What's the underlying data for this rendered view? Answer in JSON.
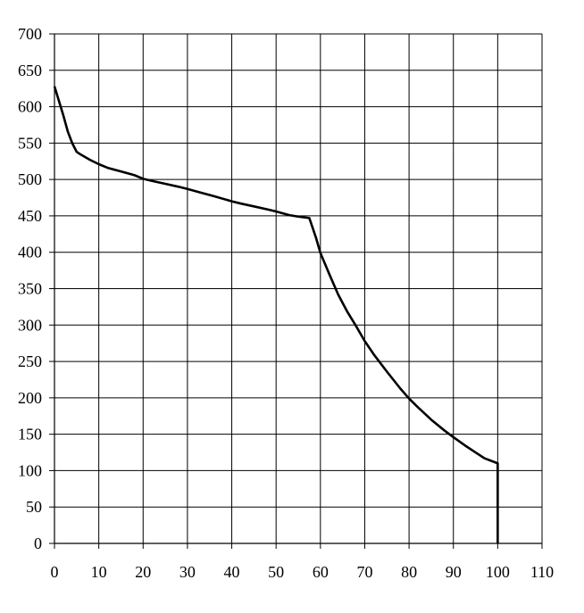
{
  "chart_data": {
    "type": "line",
    "title": "",
    "xlabel": "",
    "ylabel": "",
    "xlim": [
      0,
      110
    ],
    "ylim": [
      0,
      700
    ],
    "x_ticks": [
      0,
      10,
      20,
      30,
      40,
      50,
      60,
      70,
      80,
      90,
      100,
      110
    ],
    "y_ticks": [
      0,
      50,
      100,
      150,
      200,
      250,
      300,
      350,
      400,
      450,
      500,
      550,
      600,
      650,
      700
    ],
    "x_tick_labels": [
      "0",
      "10",
      "20",
      "30",
      "40",
      "50",
      "60",
      "70",
      "80",
      "90",
      "100",
      "110"
    ],
    "y_tick_labels": [
      "0",
      "50",
      "100",
      "150",
      "200",
      "250",
      "300",
      "350",
      "400",
      "450",
      "500",
      "550",
      "600",
      "650",
      "700"
    ],
    "grid": true,
    "line_color": "#000000",
    "series": [
      {
        "points": [
          [
            0,
            628
          ],
          [
            1,
            608
          ],
          [
            2,
            588
          ],
          [
            3,
            566
          ],
          [
            4,
            550
          ],
          [
            5,
            538
          ],
          [
            6,
            534
          ],
          [
            8,
            527
          ],
          [
            10,
            521
          ],
          [
            12,
            516
          ],
          [
            15,
            511
          ],
          [
            18,
            506
          ],
          [
            20,
            501
          ],
          [
            22,
            498
          ],
          [
            25,
            494
          ],
          [
            28,
            490
          ],
          [
            30,
            487
          ],
          [
            33,
            482
          ],
          [
            36,
            477
          ],
          [
            40,
            470
          ],
          [
            42,
            467
          ],
          [
            45,
            463
          ],
          [
            48,
            459
          ],
          [
            50,
            456
          ],
          [
            53,
            451
          ],
          [
            55,
            449
          ],
          [
            57.5,
            447
          ],
          [
            59,
            420
          ],
          [
            60,
            399
          ],
          [
            62,
            370
          ],
          [
            64,
            342
          ],
          [
            66,
            319
          ],
          [
            68,
            299
          ],
          [
            70,
            278
          ],
          [
            72,
            260
          ],
          [
            75,
            236
          ],
          [
            78,
            213
          ],
          [
            80,
            199
          ],
          [
            82,
            187
          ],
          [
            85,
            170
          ],
          [
            88,
            155
          ],
          [
            90,
            146
          ],
          [
            93,
            133
          ],
          [
            95,
            125
          ],
          [
            97,
            117
          ],
          [
            100,
            110
          ],
          [
            100,
            0
          ]
        ]
      }
    ]
  }
}
